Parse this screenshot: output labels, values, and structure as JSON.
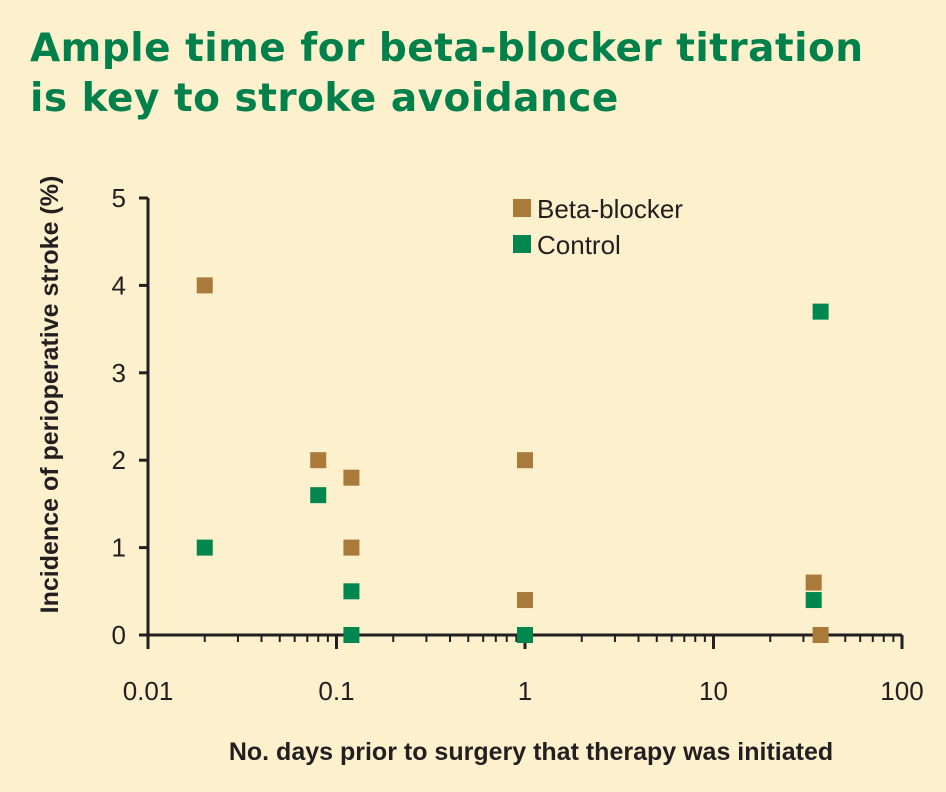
{
  "title_lines": [
    "Ample time for beta-blocker titration",
    "is key to stroke avoidance"
  ],
  "colors": {
    "background": "#fdf0cc",
    "title": "#00804a",
    "axis": "#231f20",
    "beta_blocker": "#a97a3a",
    "control": "#00874f"
  },
  "chart_data": {
    "type": "scatter",
    "xlabel": "No. days prior to surgery that therapy was initiated",
    "ylabel": "Incidence of perioperative stroke (%)",
    "x_scale": "log",
    "xlim": [
      0.01,
      100
    ],
    "ylim": [
      0,
      5
    ],
    "x_ticks": [
      0.01,
      0.1,
      1,
      10,
      100
    ],
    "x_tick_labels": [
      "0.01",
      "0.1",
      "1",
      "10",
      "100"
    ],
    "y_ticks": [
      0,
      1,
      2,
      3,
      4,
      5
    ],
    "y_tick_labels": [
      "0",
      "1",
      "2",
      "3",
      "4",
      "5"
    ],
    "grid": false,
    "legend_position": "top-center",
    "series": [
      {
        "name": "Beta-blocker",
        "color": "#a97a3a",
        "points": [
          {
            "x": 0.02,
            "y": 4.0
          },
          {
            "x": 0.08,
            "y": 2.0
          },
          {
            "x": 0.12,
            "y": 1.8
          },
          {
            "x": 0.12,
            "y": 1.0
          },
          {
            "x": 1,
            "y": 2.0
          },
          {
            "x": 1,
            "y": 0.4
          },
          {
            "x": 34,
            "y": 0.6
          },
          {
            "x": 37,
            "y": 0.0
          }
        ]
      },
      {
        "name": "Control",
        "color": "#00874f",
        "points": [
          {
            "x": 0.02,
            "y": 1.0
          },
          {
            "x": 0.08,
            "y": 1.6
          },
          {
            "x": 0.12,
            "y": 0.5
          },
          {
            "x": 0.12,
            "y": 0.0
          },
          {
            "x": 1,
            "y": 0.0
          },
          {
            "x": 34,
            "y": 0.4
          },
          {
            "x": 37,
            "y": 3.7
          }
        ]
      }
    ]
  }
}
